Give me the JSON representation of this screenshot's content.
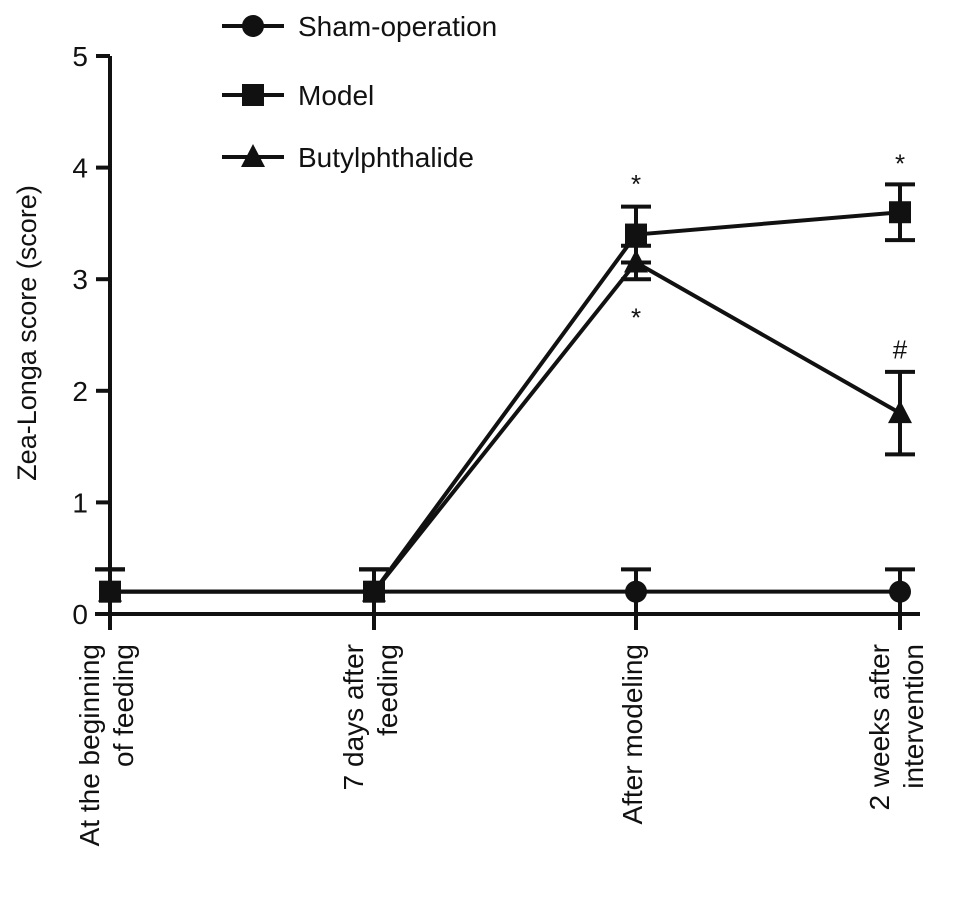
{
  "chart_data": {
    "type": "line",
    "title": "",
    "xlabel": "",
    "ylabel": "Zea-Longa score (score)",
    "ylim": [
      0,
      5
    ],
    "yticks": [
      0,
      1,
      2,
      3,
      4,
      5
    ],
    "categories": [
      [
        "At the beginning",
        "of feeding"
      ],
      [
        "7 days after",
        "feeding"
      ],
      [
        "After modeling"
      ],
      [
        "2 weeks after",
        "intervention"
      ]
    ],
    "legend_position": "top-left",
    "grid": false,
    "series": [
      {
        "name": "Sham-operation",
        "marker": "circle",
        "values": [
          0.2,
          0.2,
          0.2,
          0.2
        ],
        "errors": [
          0.2,
          0.2,
          0.2,
          0.2
        ]
      },
      {
        "name": "Model",
        "marker": "square",
        "values": [
          0.2,
          0.2,
          3.4,
          3.6
        ],
        "errors": [
          0.2,
          0.2,
          0.25,
          0.25
        ]
      },
      {
        "name": "Butylphthalide",
        "marker": "triangle",
        "values": [
          0.2,
          0.2,
          3.15,
          1.8
        ],
        "errors": [
          0.2,
          0.2,
          0.15,
          0.37
        ]
      }
    ],
    "annotations": [
      {
        "text": "*",
        "category_index": 2,
        "y": 3.9
      },
      {
        "text": "*",
        "category_index": 2,
        "y": 2.7
      },
      {
        "text": "*",
        "category_index": 3,
        "y": 4.08
      },
      {
        "text": "#",
        "category_index": 3,
        "y": 2.38
      }
    ]
  }
}
